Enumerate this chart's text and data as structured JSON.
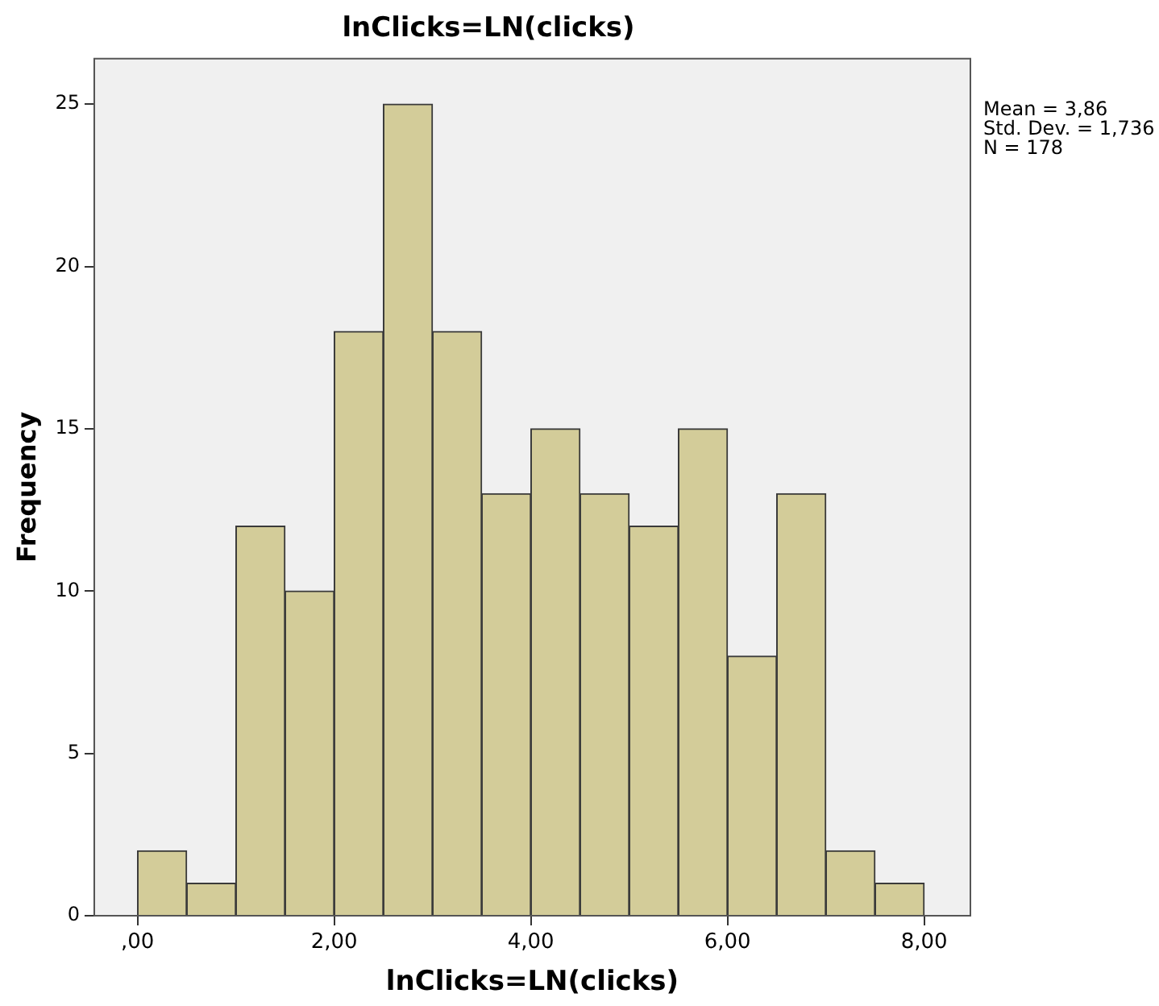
{
  "chart_data": {
    "type": "histogram",
    "title": "lnClicks=LN(clicks)",
    "xlabel": "lnClicks=LN(clicks)",
    "ylabel": "Frequency",
    "bins": [
      0,
      0.5,
      1,
      1.5,
      2,
      2.5,
      3,
      3.5,
      4,
      4.5,
      5,
      5.5,
      6,
      6.5,
      7,
      7.5,
      8
    ],
    "values": [
      2,
      1,
      12,
      10,
      18,
      25,
      18,
      13,
      15,
      13,
      12,
      15,
      8,
      13,
      2,
      1
    ],
    "color": "#d3cc99",
    "xlim": [
      -0.44,
      8.47
    ],
    "xticks": [
      {
        "value": 0,
        "label": ",00"
      },
      {
        "value": 2,
        "label": "2,00"
      },
      {
        "value": 4,
        "label": "4,00"
      },
      {
        "value": 6,
        "label": "6,00"
      },
      {
        "value": 8,
        "label": "8,00"
      }
    ],
    "ylim": [
      0,
      26.4
    ],
    "yticks": [
      0,
      5,
      10,
      15,
      20,
      25
    ],
    "grid": false,
    "legend": false,
    "annotations": [
      "Mean = 3,86",
      "Std. Dev. = 1,736",
      "N = 178"
    ]
  }
}
